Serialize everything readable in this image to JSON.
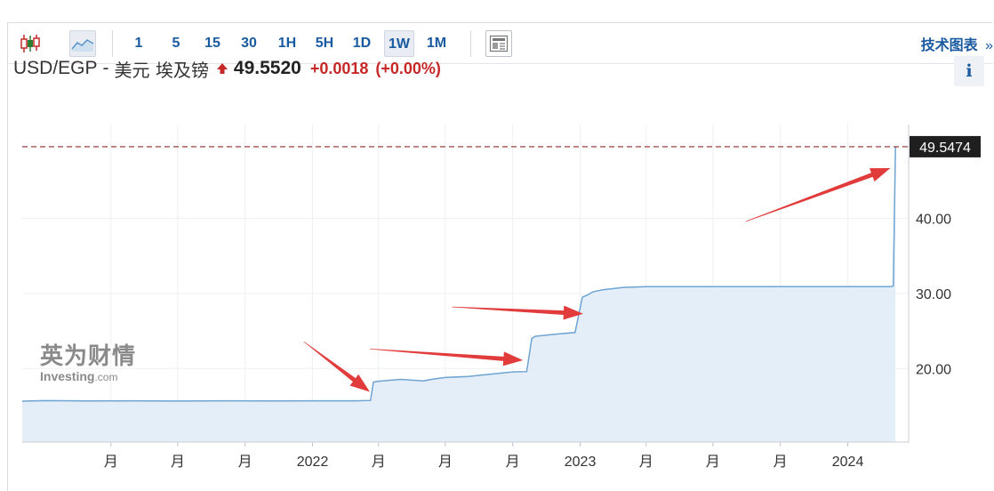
{
  "toolbar": {
    "icons": {
      "candles": "candlestick-chart-icon",
      "area": "area-chart-icon",
      "layout": "chart-layout-icon"
    },
    "timeframes": [
      "1",
      "5",
      "15",
      "30",
      "1H",
      "5H",
      "1D",
      "1W",
      "1M"
    ],
    "active_timeframe": "1W",
    "tech_chart_label": "技术图表",
    "tech_chart_chevron": "»"
  },
  "header": {
    "pair": "USD/EGP",
    "separator": "-",
    "name": "美元 埃及镑",
    "price": "49.5520",
    "change": "+0.0018",
    "change_pct": "(+0.00%)",
    "trend_icon": "up-triangle-icon",
    "info_label": "i"
  },
  "watermark": {
    "cn": "英为财情",
    "en_brand": "Investing",
    "en_suffix": ".com"
  },
  "colors": {
    "accent": "#1a5aa0",
    "up": "#c62828",
    "line": "#6fa3d2",
    "fill": "#e4eef8",
    "arrow": "#e23b3b",
    "last_price_bg": "#1f1f1f"
  },
  "chart_data": {
    "type": "area",
    "title": "",
    "xlabel": "",
    "ylabel": "",
    "ylim": [
      10.2,
      52.5
    ],
    "y_ticks": [
      "20.00",
      "30.00",
      "40.00"
    ],
    "y_tick_values": [
      20,
      30,
      40
    ],
    "x_ticks": [
      "月",
      "月",
      "月",
      "2022",
      "月",
      "月",
      "月",
      "2023",
      "月",
      "月",
      "月",
      "2024"
    ],
    "x_tick_dates": [
      "2021-04",
      "2021-07",
      "2021-10",
      "2022-01",
      "2022-04",
      "2022-07",
      "2022-10",
      "2023-01",
      "2023-04",
      "2023-07",
      "2023-10",
      "2024-01"
    ],
    "last_price_label": "49.5474",
    "last_price": 49.5474,
    "grid": true,
    "series": [
      {
        "x": [
          "2020-12",
          "2021-01",
          "2021-03",
          "2021-05",
          "2021-07",
          "2021-09",
          "2021-11",
          "2022-01",
          "2022-03",
          "2022-03-21",
          "2022-03-25",
          "2022-04",
          "2022-05",
          "2022-06",
          "2022-06-15",
          "2022-07",
          "2022-08",
          "2022-09",
          "2022-10",
          "2022-10-20",
          "2022-10-27",
          "2022-11",
          "2022-12",
          "2022-12-25",
          "2023-01-04",
          "2023-01-11",
          "2023-01-18",
          "2023-02",
          "2023-03",
          "2023-04",
          "2023-05",
          "2023-06",
          "2023-08",
          "2023-10",
          "2023-11",
          "2023-12",
          "2024-01",
          "2024-02",
          "2024-02-28",
          "2024-03-03",
          "2024-03-06"
        ],
        "y": [
          15.65,
          15.72,
          15.68,
          15.7,
          15.66,
          15.7,
          15.69,
          15.7,
          15.7,
          15.75,
          18.2,
          18.3,
          18.55,
          18.35,
          18.6,
          18.8,
          18.95,
          19.25,
          19.55,
          19.6,
          24.0,
          24.3,
          24.6,
          24.8,
          29.5,
          29.8,
          30.2,
          30.5,
          30.8,
          30.9,
          30.9,
          30.9,
          30.9,
          30.9,
          30.9,
          30.9,
          30.9,
          30.9,
          30.9,
          31.0,
          49.5474
        ]
      }
    ],
    "annotations": [
      {
        "type": "arrow",
        "from": [
          "2021-12-20",
          23.6
        ],
        "to": [
          "2022-03-20",
          16.9
        ]
      },
      {
        "type": "arrow",
        "from": [
          "2022-03-20",
          22.6
        ],
        "to": [
          "2022-10-15",
          21.1
        ]
      },
      {
        "type": "arrow",
        "from": [
          "2022-07-10",
          28.2
        ],
        "to": [
          "2023-01-05",
          27.3
        ]
      },
      {
        "type": "arrow",
        "from": [
          "2023-08-15",
          39.6
        ],
        "to": [
          "2024-02-28",
          46.7
        ]
      }
    ]
  }
}
